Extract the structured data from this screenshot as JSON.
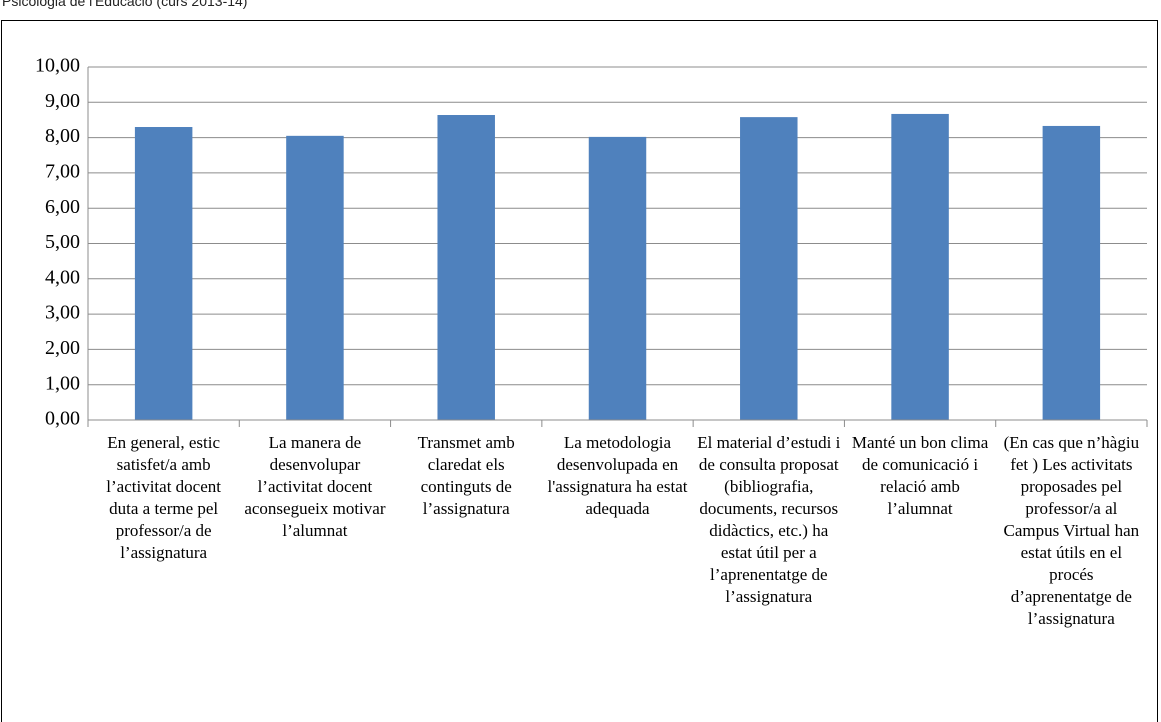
{
  "chart_data": {
    "type": "bar",
    "title": "Psicologia de l'Educació (curs 2013-14)",
    "categories": [
      "En general, estic satisfet/a amb l’activitat docent duta a terme pel professor/a de l’assignatura",
      "La manera de desenvolupar l’activitat docent aconsegueix motivar l’alumnat",
      "Transmet amb claredat els continguts de l’assignatura",
      "La metodologia desenvolupada en l'assignatura ha estat adequada",
      "El material d’estudi i de consulta proposat (bibliografia, documents, recursos didàctics, etc.) ha estat útil per a l’aprenentatge de l’assignatura",
      "Manté un bon clima de comunicació i relació amb l’alumnat",
      "(En cas que n’hàgiu fet ) Les activitats proposades pel professor/a al Campus Virtual han estat útils en el procés d’aprenentatge de l’assignatura"
    ],
    "values": [
      8.3,
      8.05,
      8.64,
      8.02,
      8.58,
      8.67,
      8.33
    ],
    "color": "#4f81bd",
    "ylim": [
      0,
      10
    ],
    "yticks": [
      {
        "value": 0,
        "label": "0,00"
      },
      {
        "value": 1,
        "label": "1,00"
      },
      {
        "value": 2,
        "label": "2,00"
      },
      {
        "value": 3,
        "label": "3,00"
      },
      {
        "value": 4,
        "label": "4,00"
      },
      {
        "value": 5,
        "label": "5,00"
      },
      {
        "value": 6,
        "label": "6,00"
      },
      {
        "value": 7,
        "label": "7,00"
      },
      {
        "value": 8,
        "label": "8,00"
      },
      {
        "value": 9,
        "label": "9,00"
      },
      {
        "value": 10,
        "label": "10,00"
      }
    ],
    "grid": true
  }
}
